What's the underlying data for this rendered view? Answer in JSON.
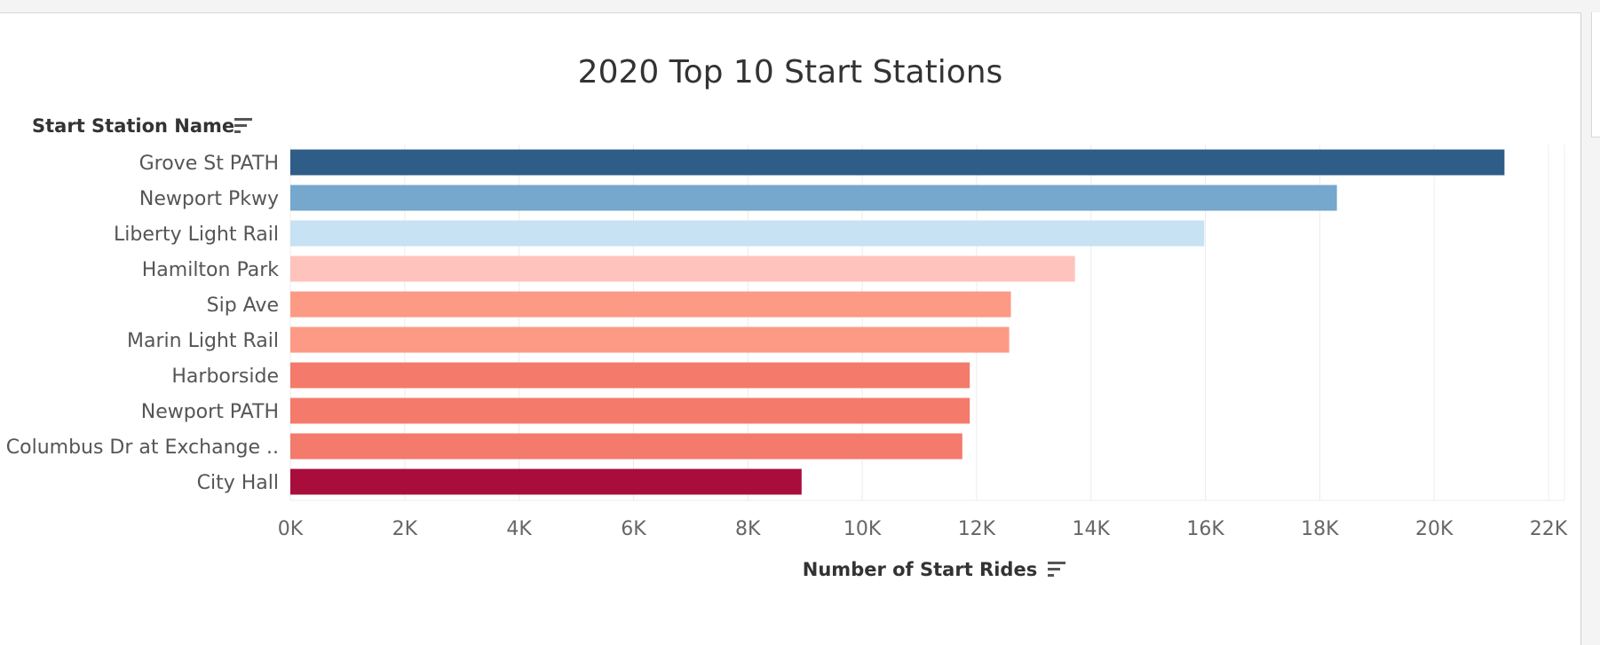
{
  "chart_data": {
    "type": "bar",
    "orientation": "horizontal",
    "title": "2020 Top 10 Start Stations",
    "ylabel": "Start Station Name",
    "xlabel": "Number of Start Rides",
    "categories": [
      "Grove St PATH",
      "Newport Pkwy",
      "Liberty Light Rail",
      "Hamilton Park",
      "Sip Ave",
      "Marin Light Rail",
      "Harborside",
      "Newport PATH",
      "Columbus Dr at Exchange ..",
      "City Hall"
    ],
    "values": [
      21230,
      18300,
      15980,
      13720,
      12600,
      12570,
      11880,
      11880,
      11750,
      8940
    ],
    "colors": [
      "#2e5d87",
      "#76a7cc",
      "#c6e2f3",
      "#ffc3bd",
      "#fc9a85",
      "#fc9a85",
      "#f47a6b",
      "#f47a6b",
      "#f47a6b",
      "#a80d3b"
    ],
    "xlim": [
      0,
      22000
    ],
    "xticks": [
      0,
      2000,
      4000,
      6000,
      8000,
      10000,
      12000,
      14000,
      16000,
      18000,
      20000,
      22000
    ],
    "xtick_labels": [
      "0K",
      "2K",
      "4K",
      "6K",
      "8K",
      "10K",
      "12K",
      "14K",
      "16K",
      "18K",
      "20K",
      "22K"
    ],
    "grid": true,
    "sort_icons": [
      "sort-descending-icon",
      "sort-descending-icon"
    ]
  }
}
